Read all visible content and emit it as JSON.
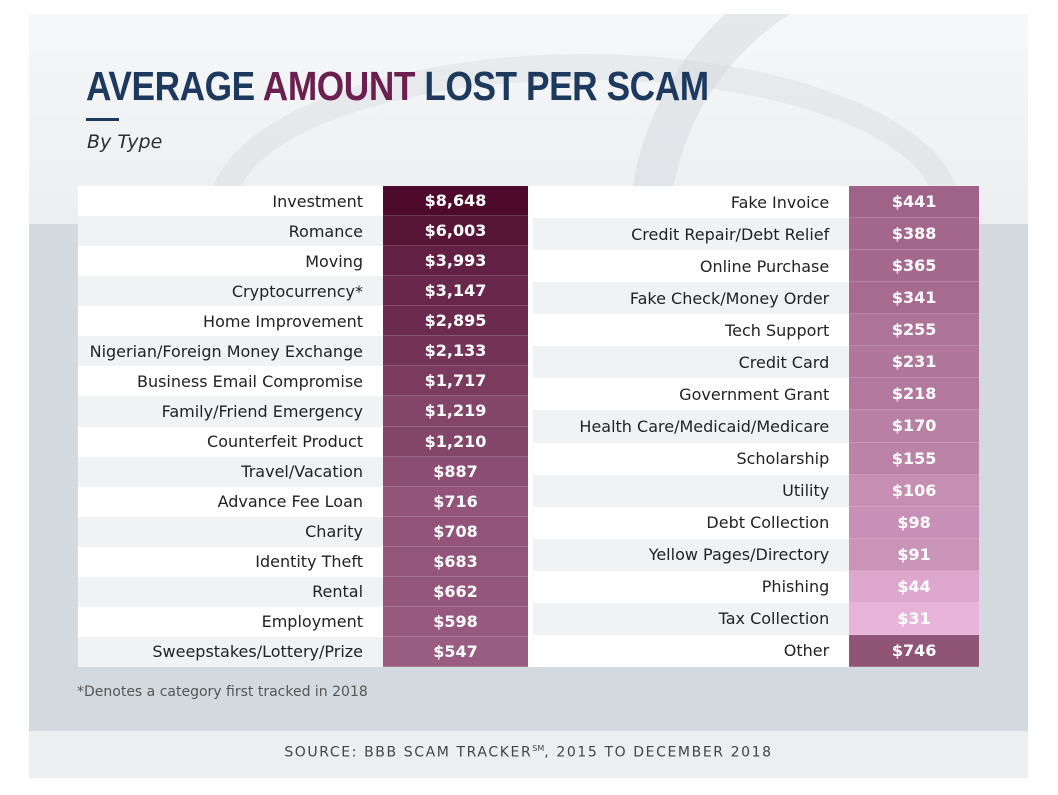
{
  "title_part1": "AVERAGE",
  "title_part2": "AMOUNT",
  "title_part3": "LOST PER SCAM",
  "subtitle": "By Type",
  "footnote": "*Denotes a category first tracked in 2018",
  "source_prefix": "SOURCE: BBB SCAM TRACKER",
  "source_mark": "SM",
  "source_suffix": ", 2015 TO DECEMBER 2018",
  "colors": {
    "darkest": "#4d0a2c",
    "lightest": "#e8b3d9",
    "navy": "#1d3a5e",
    "plum": "#6b1f4f"
  },
  "chart_data": {
    "type": "table",
    "title": "AVERAGE AMOUNT LOST PER SCAM",
    "subtitle": "By Type",
    "unit": "USD",
    "left_column": [
      {
        "label": "Investment",
        "value": 8648,
        "display": "$8,648"
      },
      {
        "label": "Romance",
        "value": 6003,
        "display": "$6,003"
      },
      {
        "label": "Moving",
        "value": 3993,
        "display": "$3,993"
      },
      {
        "label": "Cryptocurrency*",
        "value": 3147,
        "display": "$3,147"
      },
      {
        "label": "Home Improvement",
        "value": 2895,
        "display": "$2,895"
      },
      {
        "label": "Nigerian/Foreign Money Exchange",
        "value": 2133,
        "display": "$2,133"
      },
      {
        "label": "Business Email Compromise",
        "value": 1717,
        "display": "$1,717"
      },
      {
        "label": "Family/Friend Emergency",
        "value": 1219,
        "display": "$1,219"
      },
      {
        "label": "Counterfeit Product",
        "value": 1210,
        "display": "$1,210"
      },
      {
        "label": "Travel/Vacation",
        "value": 887,
        "display": "$887"
      },
      {
        "label": "Advance Fee Loan",
        "value": 716,
        "display": "$716"
      },
      {
        "label": "Charity",
        "value": 708,
        "display": "$708"
      },
      {
        "label": "Identity Theft",
        "value": 683,
        "display": "$683"
      },
      {
        "label": "Rental",
        "value": 662,
        "display": "$662"
      },
      {
        "label": "Employment",
        "value": 598,
        "display": "$598"
      },
      {
        "label": "Sweepstakes/Lottery/Prize",
        "value": 547,
        "display": "$547"
      }
    ],
    "right_column": [
      {
        "label": "Fake Invoice",
        "value": 441,
        "display": "$441"
      },
      {
        "label": "Credit Repair/Debt Relief",
        "value": 388,
        "display": "$388"
      },
      {
        "label": "Online Purchase",
        "value": 365,
        "display": "$365"
      },
      {
        "label": "Fake Check/Money Order",
        "value": 341,
        "display": "$341"
      },
      {
        "label": "Tech Support",
        "value": 255,
        "display": "$255"
      },
      {
        "label": "Credit Card",
        "value": 231,
        "display": "$231"
      },
      {
        "label": "Government Grant",
        "value": 218,
        "display": "$218"
      },
      {
        "label": "Health Care/Medicaid/Medicare",
        "value": 170,
        "display": "$170"
      },
      {
        "label": "Scholarship",
        "value": 155,
        "display": "$155"
      },
      {
        "label": "Utility",
        "value": 106,
        "display": "$106"
      },
      {
        "label": "Debt Collection",
        "value": 98,
        "display": "$98"
      },
      {
        "label": "Yellow Pages/Directory",
        "value": 91,
        "display": "$91"
      },
      {
        "label": "Phishing",
        "value": 44,
        "display": "$44"
      },
      {
        "label": "Tax Collection",
        "value": 31,
        "display": "$31"
      },
      {
        "label": "Other",
        "value": 746,
        "display": "$746"
      }
    ]
  }
}
